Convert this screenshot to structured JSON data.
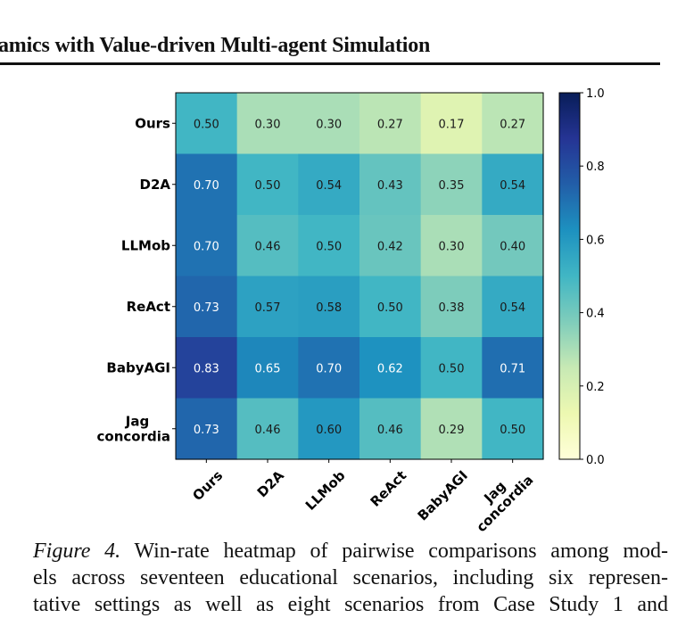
{
  "header": {
    "title": "amics with Value-driven Multi-agent Simulation"
  },
  "chart_data": {
    "type": "heatmap",
    "row_labels": [
      "Ours",
      "D2A",
      "LLMob",
      "ReAct",
      "BabyAGI",
      "Jag\nconcordia"
    ],
    "col_labels": [
      "Ours",
      "D2A",
      "LLMob",
      "ReAct",
      "BabyAGI",
      "Jag\nconcordia"
    ],
    "values": [
      [
        0.5,
        0.3,
        0.3,
        0.27,
        0.17,
        0.27
      ],
      [
        0.7,
        0.5,
        0.54,
        0.43,
        0.35,
        0.54
      ],
      [
        0.7,
        0.46,
        0.5,
        0.42,
        0.3,
        0.4
      ],
      [
        0.73,
        0.57,
        0.58,
        0.5,
        0.38,
        0.54
      ],
      [
        0.83,
        0.65,
        0.7,
        0.62,
        0.5,
        0.71
      ],
      [
        0.73,
        0.46,
        0.6,
        0.46,
        0.29,
        0.5
      ]
    ],
    "value_labels": [
      [
        "0.50",
        "0.30",
        "0.30",
        "0.27",
        "0.17",
        "0.27"
      ],
      [
        "0.70",
        "0.50",
        "0.54",
        "0.43",
        "0.35",
        "0.54"
      ],
      [
        "0.70",
        "0.46",
        "0.50",
        "0.42",
        "0.30",
        "0.40"
      ],
      [
        "0.73",
        "0.57",
        "0.58",
        "0.50",
        "0.38",
        "0.54"
      ],
      [
        "0.83",
        "0.65",
        "0.70",
        "0.62",
        "0.50",
        "0.71"
      ],
      [
        "0.73",
        "0.46",
        "0.60",
        "0.46",
        "0.29",
        "0.50"
      ]
    ],
    "colormap": "YlGnBu",
    "vmin": 0.0,
    "vmax": 1.0,
    "colorbar_ticks": [
      "0.0",
      "0.2",
      "0.4",
      "0.6",
      "0.8",
      "1.0"
    ],
    "colorbar_stops": [
      "#ffffd9",
      "#edf8b1",
      "#c7e9b4",
      "#7fcdbb",
      "#41b6c4",
      "#1d91c0",
      "#225ea8",
      "#253494",
      "#081d58"
    ],
    "grid": false
  },
  "caption": {
    "label": "Figure 4.",
    "lines": [
      " Win-rate heatmap of pairwise comparisons among mod-",
      "els across seventeen educational scenarios, including six represen-",
      "tative settings as well as eight scenarios from Case Study 1 and"
    ]
  }
}
